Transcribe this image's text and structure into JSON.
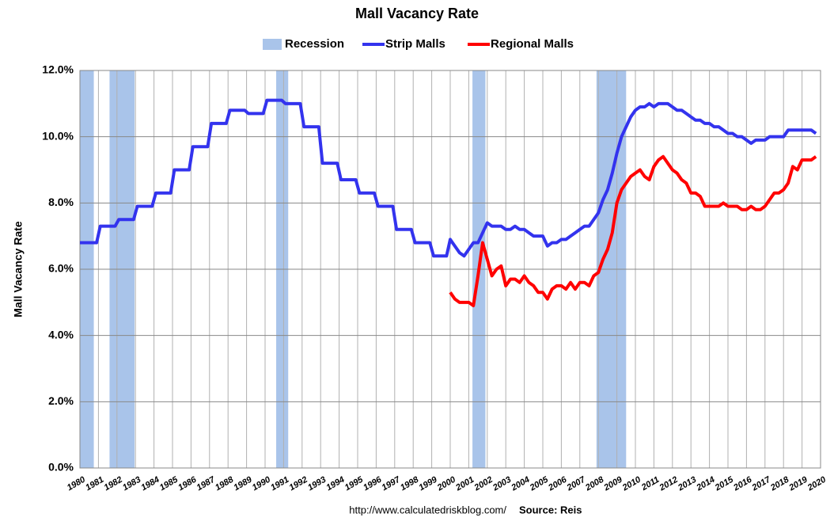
{
  "chart_data": {
    "type": "line",
    "title": "Mall Vacancy Rate",
    "y_label": "Mall Vacancy Rate",
    "footer_url": "http://www.calculatedriskblog.com/",
    "footer_source": "Source: Reis",
    "grid": true,
    "xlim": [
      1980,
      2020
    ],
    "ylim": [
      0,
      12
    ],
    "xticks": [
      1980,
      1981,
      1982,
      1983,
      1984,
      1985,
      1986,
      1987,
      1988,
      1989,
      1990,
      1991,
      1992,
      1993,
      1994,
      1995,
      1996,
      1997,
      1998,
      1999,
      2000,
      2001,
      2002,
      2003,
      2004,
      2005,
      2006,
      2007,
      2008,
      2009,
      2010,
      2011,
      2012,
      2013,
      2014,
      2015,
      2016,
      2017,
      2018,
      2019,
      2020
    ],
    "yticks": [
      {
        "value": 0,
        "label": "0.0%"
      },
      {
        "value": 2,
        "label": "2.0%"
      },
      {
        "value": 4,
        "label": "4.0%"
      },
      {
        "value": 6,
        "label": "6.0%"
      },
      {
        "value": 8,
        "label": "8.0%"
      },
      {
        "value": 10,
        "label": "10.0%"
      },
      {
        "value": 12,
        "label": "12.0%"
      }
    ],
    "recession": {
      "name": "Recession",
      "color": "#a9c4ea",
      "spans": [
        [
          1980.0,
          1980.75
        ],
        [
          1981.6,
          1982.95
        ],
        [
          1990.6,
          1991.25
        ],
        [
          2001.2,
          2001.9
        ],
        [
          2007.9,
          2009.5
        ]
      ]
    },
    "series": [
      {
        "name": "Strip Malls",
        "color": "#3333ee",
        "x": [
          1980,
          1980.9,
          1981.1,
          1981.9,
          1982.1,
          1982.9,
          1983.1,
          1983.9,
          1984.1,
          1984.9,
          1985.1,
          1985.9,
          1986.1,
          1986.9,
          1987.1,
          1987.9,
          1988.1,
          1988.9,
          1989.1,
          1989.9,
          1990.1,
          1990.9,
          1991.1,
          1991.9,
          1992.1,
          1992.9,
          1993.1,
          1993.9,
          1994.1,
          1994.9,
          1995.1,
          1995.9,
          1996.1,
          1996.9,
          1997.1,
          1997.9,
          1998.1,
          1998.9,
          1999.1,
          1999.8,
          2000.0,
          2000.25,
          2000.5,
          2000.75,
          2001.0,
          2001.25,
          2001.5,
          2001.75,
          2002.0,
          2002.25,
          2002.5,
          2002.75,
          2003.0,
          2003.25,
          2003.5,
          2003.75,
          2004.0,
          2004.25,
          2004.5,
          2004.75,
          2005.0,
          2005.25,
          2005.5,
          2005.75,
          2006.0,
          2006.25,
          2006.5,
          2006.75,
          2007.0,
          2007.25,
          2007.5,
          2007.75,
          2008.0,
          2008.25,
          2008.5,
          2008.75,
          2009.0,
          2009.25,
          2009.5,
          2009.75,
          2010.0,
          2010.25,
          2010.5,
          2010.75,
          2011.0,
          2011.25,
          2011.5,
          2011.75,
          2012.0,
          2012.25,
          2012.5,
          2012.75,
          2013.0,
          2013.25,
          2013.5,
          2013.75,
          2014.0,
          2014.25,
          2014.5,
          2014.75,
          2015.0,
          2015.25,
          2015.5,
          2015.75,
          2016.0,
          2016.25,
          2016.5,
          2016.75,
          2017.0,
          2017.25,
          2017.5,
          2017.75,
          2018.0,
          2018.25,
          2018.5,
          2018.75,
          2019.0,
          2019.25,
          2019.5,
          2019.75
        ],
        "values": [
          6.8,
          6.8,
          7.3,
          7.3,
          7.5,
          7.5,
          7.9,
          7.9,
          8.3,
          8.3,
          9.0,
          9.0,
          9.7,
          9.7,
          10.4,
          10.4,
          10.8,
          10.8,
          10.7,
          10.7,
          11.1,
          11.1,
          11.0,
          11.0,
          10.3,
          10.3,
          9.2,
          9.2,
          8.7,
          8.7,
          8.3,
          8.3,
          7.9,
          7.9,
          7.2,
          7.2,
          6.8,
          6.8,
          6.4,
          6.4,
          6.9,
          6.7,
          6.5,
          6.4,
          6.6,
          6.8,
          6.8,
          7.1,
          7.4,
          7.3,
          7.3,
          7.3,
          7.2,
          7.2,
          7.3,
          7.2,
          7.2,
          7.1,
          7.0,
          7.0,
          7.0,
          6.7,
          6.8,
          6.8,
          6.9,
          6.9,
          7.0,
          7.1,
          7.2,
          7.3,
          7.3,
          7.5,
          7.7,
          8.1,
          8.4,
          8.9,
          9.5,
          10.0,
          10.3,
          10.6,
          10.8,
          10.9,
          10.9,
          11.0,
          10.9,
          11.0,
          11.0,
          11.0,
          10.9,
          10.8,
          10.8,
          10.7,
          10.6,
          10.5,
          10.5,
          10.4,
          10.4,
          10.3,
          10.3,
          10.2,
          10.1,
          10.1,
          10.0,
          10.0,
          9.9,
          9.8,
          9.9,
          9.9,
          9.9,
          10.0,
          10.0,
          10.0,
          10.0,
          10.2,
          10.2,
          10.2,
          10.2,
          10.2,
          10.2,
          10.1
        ]
      },
      {
        "name": "Regional Malls",
        "color": "#ff0000",
        "x": [
          2000.0,
          2000.25,
          2000.5,
          2000.75,
          2001.0,
          2001.25,
          2001.5,
          2001.75,
          2002.0,
          2002.25,
          2002.5,
          2002.75,
          2003.0,
          2003.25,
          2003.5,
          2003.75,
          2004.0,
          2004.25,
          2004.5,
          2004.75,
          2005.0,
          2005.25,
          2005.5,
          2005.75,
          2006.0,
          2006.25,
          2006.5,
          2006.75,
          2007.0,
          2007.25,
          2007.5,
          2007.75,
          2008.0,
          2008.25,
          2008.5,
          2008.75,
          2009.0,
          2009.25,
          2009.5,
          2009.75,
          2010.0,
          2010.25,
          2010.5,
          2010.75,
          2011.0,
          2011.25,
          2011.5,
          2011.75,
          2012.0,
          2012.25,
          2012.5,
          2012.75,
          2013.0,
          2013.25,
          2013.5,
          2013.75,
          2014.0,
          2014.25,
          2014.5,
          2014.75,
          2015.0,
          2015.25,
          2015.5,
          2015.75,
          2016.0,
          2016.25,
          2016.5,
          2016.75,
          2017.0,
          2017.25,
          2017.5,
          2017.75,
          2018.0,
          2018.25,
          2018.5,
          2018.75,
          2019.0,
          2019.25,
          2019.5,
          2019.75
        ],
        "values": [
          5.3,
          5.1,
          5.0,
          5.0,
          5.0,
          4.9,
          5.8,
          6.8,
          6.3,
          5.8,
          6.0,
          6.1,
          5.5,
          5.7,
          5.7,
          5.6,
          5.8,
          5.6,
          5.5,
          5.3,
          5.3,
          5.1,
          5.4,
          5.5,
          5.5,
          5.4,
          5.6,
          5.4,
          5.6,
          5.6,
          5.5,
          5.8,
          5.9,
          6.3,
          6.6,
          7.1,
          8.0,
          8.4,
          8.6,
          8.8,
          8.9,
          9.0,
          8.8,
          8.7,
          9.1,
          9.3,
          9.4,
          9.2,
          9.0,
          8.9,
          8.7,
          8.6,
          8.3,
          8.3,
          8.2,
          7.9,
          7.9,
          7.9,
          7.9,
          8.0,
          7.9,
          7.9,
          7.9,
          7.8,
          7.8,
          7.9,
          7.8,
          7.8,
          7.9,
          8.1,
          8.3,
          8.3,
          8.4,
          8.6,
          9.1,
          9.0,
          9.3,
          9.3,
          9.3,
          9.4
        ]
      }
    ]
  }
}
